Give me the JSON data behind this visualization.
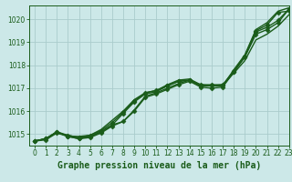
{
  "title": "Graphe pression niveau de la mer (hPa)",
  "bg_color": "#cce8e8",
  "grid_color": "#aacccc",
  "line_color": "#1a5c1a",
  "marker_color": "#1a5c1a",
  "xlim": [
    -0.5,
    23
  ],
  "ylim": [
    1014.5,
    1020.6
  ],
  "yticks": [
    1015,
    1016,
    1017,
    1018,
    1019,
    1020
  ],
  "xticks": [
    0,
    1,
    2,
    3,
    4,
    5,
    6,
    7,
    8,
    9,
    10,
    11,
    12,
    13,
    14,
    15,
    16,
    17,
    18,
    19,
    20,
    21,
    22,
    23
  ],
  "lines": [
    {
      "y": [
        1014.7,
        1014.8,
        1015.1,
        1014.9,
        1014.8,
        1014.9,
        1015.1,
        1015.4,
        1015.9,
        1016.4,
        1016.75,
        1016.85,
        1017.1,
        1017.3,
        1017.35,
        1017.1,
        1017.1,
        1017.1,
        1017.7,
        1018.35,
        1019.35,
        1019.55,
        1019.85,
        1020.45
      ],
      "marker": "D",
      "lw": 1.0
    },
    {
      "y": [
        1014.7,
        1014.8,
        1015.1,
        1014.9,
        1014.9,
        1014.95,
        1015.2,
        1015.6,
        1016.0,
        1016.5,
        1016.8,
        1016.9,
        1017.15,
        1017.35,
        1017.4,
        1017.15,
        1017.1,
        1017.15,
        1017.65,
        1018.2,
        1019.1,
        1019.35,
        1019.7,
        1020.2
      ],
      "marker": null,
      "lw": 1.0
    },
    {
      "y": [
        1014.7,
        1014.8,
        1015.1,
        1014.95,
        1014.85,
        1014.95,
        1015.15,
        1015.5,
        1015.95,
        1016.45,
        1016.8,
        1016.9,
        1017.1,
        1017.3,
        1017.35,
        1017.15,
        1017.15,
        1017.15,
        1017.75,
        1018.4,
        1019.45,
        1019.65,
        1019.95,
        1020.45
      ],
      "marker": "D",
      "lw": 1.0
    },
    {
      "y": [
        1014.7,
        1014.8,
        1015.05,
        1014.95,
        1014.85,
        1014.9,
        1015.1,
        1015.4,
        1015.55,
        1016.05,
        1016.65,
        1016.8,
        1017.0,
        1017.2,
        1017.35,
        1017.1,
        1017.1,
        1017.1,
        1017.8,
        1018.45,
        1019.55,
        1019.85,
        1020.35,
        1020.5
      ],
      "marker": null,
      "lw": 1.0
    },
    {
      "y": [
        1014.7,
        1014.75,
        1015.05,
        1014.9,
        1014.8,
        1014.85,
        1015.05,
        1015.35,
        1015.55,
        1016.0,
        1016.6,
        1016.75,
        1016.95,
        1017.15,
        1017.3,
        1017.05,
        1017.0,
        1017.05,
        1017.7,
        1018.4,
        1019.5,
        1019.75,
        1020.3,
        1020.35
      ],
      "marker": "D",
      "lw": 1.0
    }
  ],
  "marker_size": 2.5,
  "title_fontsize": 7,
  "tick_fontsize": 5.5,
  "title_color": "#1a5c1a",
  "ylabel_fontsize": 6
}
